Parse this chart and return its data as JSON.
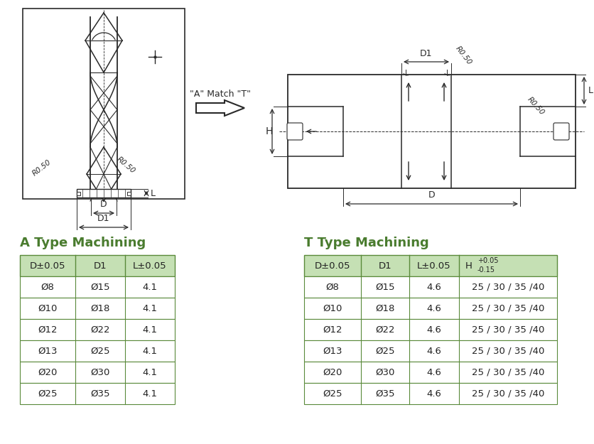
{
  "background_color": "#ffffff",
  "title_color": "#4a7c2f",
  "header_bg_color": "#c5e0b4",
  "border_color": "#5a8a3a",
  "text_color": "#222222",
  "a_type_title": "A Type Machining",
  "t_type_title": "T Type Machining",
  "a_headers": [
    "D±0.05",
    "D1",
    "L±0.05"
  ],
  "t_headers": [
    "D±0.05",
    "D1",
    "L±0.05",
    "H"
  ],
  "t_header_h_top": "+0.05",
  "t_header_h_bot": "-0.15",
  "a_rows": [
    [
      "Ø8",
      "Ø15",
      "4.1"
    ],
    [
      "Ø10",
      "Ø18",
      "4.1"
    ],
    [
      "Ø12",
      "Ø22",
      "4.1"
    ],
    [
      "Ø13",
      "Ø25",
      "4.1"
    ],
    [
      "Ø20",
      "Ø30",
      "4.1"
    ],
    [
      "Ø25",
      "Ø35",
      "4.1"
    ]
  ],
  "t_rows": [
    [
      "Ø8",
      "Ø15",
      "4.6",
      "25 / 30 / 35 /40"
    ],
    [
      "Ø10",
      "Ø18",
      "4.6",
      "25 / 30 / 35 /40"
    ],
    [
      "Ø12",
      "Ø22",
      "4.6",
      "25 / 30 / 35 /40"
    ],
    [
      "Ø13",
      "Ø25",
      "4.6",
      "25 / 30 / 35 /40"
    ],
    [
      "Ø20",
      "Ø30",
      "4.6",
      "25 / 30 / 35 /40"
    ],
    [
      "Ø25",
      "Ø35",
      "4.6",
      "25 / 30 / 35 /40"
    ]
  ],
  "arrow_text": "\"A\" Match \"T\"",
  "fig_width": 8.36,
  "fig_height": 6.25
}
